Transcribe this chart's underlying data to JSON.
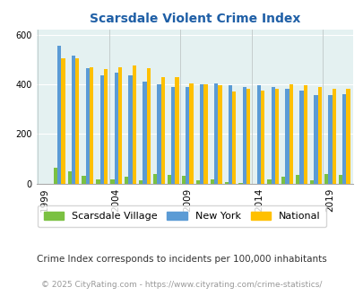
{
  "title": "Scarsdale Violent Crime Index",
  "plot_years": [
    1999,
    2000,
    2001,
    2002,
    2003,
    2004,
    2005,
    2006,
    2007,
    2008,
    2009,
    2010,
    2011,
    2012,
    2013,
    2014,
    2015,
    2016,
    2017,
    2018,
    2019,
    2020
  ],
  "scarsdale": [
    0,
    65,
    50,
    30,
    15,
    15,
    28,
    12,
    40,
    35,
    30,
    12,
    15,
    5,
    2,
    0,
    15,
    28,
    35,
    12,
    38,
    35
  ],
  "new_york": [
    0,
    555,
    515,
    465,
    435,
    445,
    435,
    410,
    400,
    390,
    390,
    400,
    405,
    395,
    390,
    395,
    388,
    383,
    375,
    355,
    358,
    360
  ],
  "national": [
    0,
    505,
    505,
    470,
    460,
    470,
    475,
    465,
    430,
    430,
    405,
    400,
    395,
    370,
    380,
    376,
    383,
    400,
    395,
    387,
    383,
    380
  ],
  "xtick_years": [
    1999,
    2004,
    2009,
    2014,
    2019
  ],
  "ylim": [
    0,
    620
  ],
  "yticks": [
    0,
    200,
    400,
    600
  ],
  "bar_color_scarsdale": "#7bc142",
  "bar_color_newyork": "#5b9bd5",
  "bar_color_national": "#ffc000",
  "bg_color": "#e4f1f1",
  "title_color": "#1f5fa6",
  "legend_label_scarsdale": "Scarsdale Village",
  "legend_label_newyork": "New York",
  "legend_label_national": "National",
  "footnote1": "Crime Index corresponds to incidents per 100,000 inhabitants",
  "footnote2": "© 2025 CityRating.com - https://www.cityrating.com/crime-statistics/",
  "footnote_color1": "#333333",
  "footnote_color2": "#999999"
}
